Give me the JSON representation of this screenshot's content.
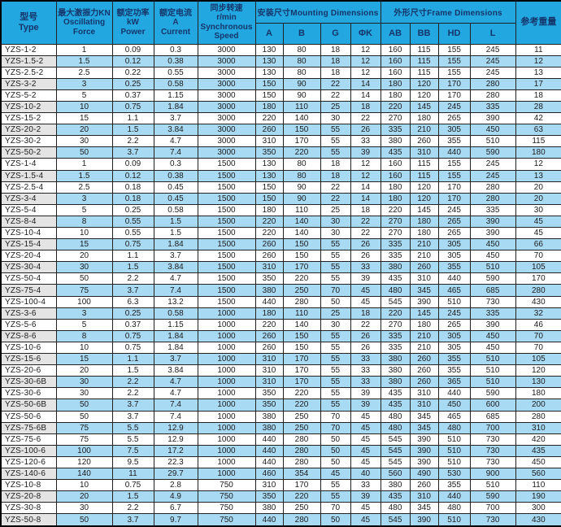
{
  "colors": {
    "header_bg": "#22a7e0",
    "header_text": "#15366b",
    "row_alt_bg": "#a9daf3",
    "type_alt_bg": "#e4e4e4",
    "border": "#222222",
    "data_text": "#1c1c1c"
  },
  "table": {
    "headers": {
      "type": "型号\nType",
      "force": "最大激振力KN\nOscillating\nForce",
      "power": "额定功率\nkW\nPower",
      "current": "额定电流\nA\nCurrent",
      "speed": "同步转速\nr/min\nSynchronous\nSpeed",
      "mounting_group": "安装尺寸Mounting Dimensions",
      "mounting_cols": [
        "A",
        "B",
        "G",
        "ΦK"
      ],
      "frame_group": "外形尺寸Frame Dimensions",
      "frame_cols": [
        "AB",
        "BB",
        "HD",
        "L"
      ],
      "weight": "参考重量"
    },
    "rows": [
      [
        "YZS-1-2",
        "1",
        "0.09",
        "0.3",
        "3000",
        "130",
        "80",
        "18",
        "12",
        "160",
        "115",
        "155",
        "245",
        "11"
      ],
      [
        "YZS-1.5-2",
        "1.5",
        "0.12",
        "0.38",
        "3000",
        "130",
        "80",
        "18",
        "12",
        "160",
        "115",
        "155",
        "245",
        "12"
      ],
      [
        "YZS-2.5-2",
        "2.5",
        "0.22",
        "0.55",
        "3000",
        "130",
        "80",
        "18",
        "12",
        "160",
        "115",
        "155",
        "245",
        "13"
      ],
      [
        "YZS-3-2",
        "3",
        "0.25",
        "0.58",
        "3000",
        "150",
        "90",
        "22",
        "14",
        "180",
        "120",
        "170",
        "280",
        "17"
      ],
      [
        "YZS-5-2",
        "5",
        "0.37",
        "1.15",
        "3000",
        "150",
        "90",
        "22",
        "14",
        "180",
        "120",
        "170",
        "280",
        "18"
      ],
      [
        "YZS-10-2",
        "10",
        "0.75",
        "1.84",
        "3000",
        "180",
        "110",
        "25",
        "18",
        "220",
        "145",
        "245",
        "335",
        "28"
      ],
      [
        "YZS-15-2",
        "15",
        "1.1",
        "3.7",
        "3000",
        "220",
        "140",
        "30",
        "22",
        "270",
        "180",
        "265",
        "390",
        "42"
      ],
      [
        "YZS-20-2",
        "20",
        "1.5",
        "3.84",
        "3000",
        "260",
        "150",
        "55",
        "26",
        "335",
        "210",
        "305",
        "450",
        "63"
      ],
      [
        "YZS-30-2",
        "30",
        "2.2",
        "4.7",
        "3000",
        "310",
        "170",
        "55",
        "33",
        "380",
        "260",
        "355",
        "510",
        "115"
      ],
      [
        "YZS-50-2",
        "50",
        "3.7",
        "7.4",
        "3000",
        "350",
        "220",
        "55",
        "39",
        "435",
        "310",
        "440",
        "590",
        "180"
      ],
      [
        "YZS-1-4",
        "1",
        "0.09",
        "0.3",
        "1500",
        "130",
        "80",
        "18",
        "12",
        "160",
        "115",
        "155",
        "245",
        "12"
      ],
      [
        "YZS-1.5-4",
        "1.5",
        "0.12",
        "0.38",
        "1500",
        "130",
        "80",
        "18",
        "12",
        "160",
        "115",
        "155",
        "245",
        "13"
      ],
      [
        "YZS-2.5-4",
        "2.5",
        "0.18",
        "0.45",
        "1500",
        "150",
        "90",
        "22",
        "14",
        "180",
        "120",
        "170",
        "280",
        "20"
      ],
      [
        "YZS-3-4",
        "3",
        "0.18",
        "0.45",
        "1500",
        "150",
        "90",
        "22",
        "14",
        "180",
        "120",
        "170",
        "280",
        "20"
      ],
      [
        "YZS-5-4",
        "5",
        "0.25",
        "0.58",
        "1500",
        "180",
        "110",
        "25",
        "18",
        "220",
        "145",
        "245",
        "335",
        "30"
      ],
      [
        "YZS-8-4",
        "8",
        "0.55",
        "1.5",
        "1500",
        "220",
        "140",
        "30",
        "22",
        "270",
        "180",
        "265",
        "390",
        "45"
      ],
      [
        "YZS-10-4",
        "10",
        "0.55",
        "1.5",
        "1500",
        "220",
        "140",
        "30",
        "22",
        "270",
        "180",
        "265",
        "390",
        "45"
      ],
      [
        "YZS-15-4",
        "15",
        "0.75",
        "1.84",
        "1500",
        "260",
        "150",
        "55",
        "26",
        "335",
        "210",
        "305",
        "450",
        "66"
      ],
      [
        "YZS-20-4",
        "20",
        "1.1",
        "3.7",
        "1500",
        "260",
        "150",
        "55",
        "26",
        "335",
        "210",
        "305",
        "450",
        "70"
      ],
      [
        "YZS-30-4",
        "30",
        "1.5",
        "3.84",
        "1500",
        "310",
        "170",
        "55",
        "33",
        "380",
        "260",
        "355",
        "510",
        "105"
      ],
      [
        "YZS-50-4",
        "50",
        "2.2",
        "4.7",
        "1500",
        "350",
        "220",
        "55",
        "39",
        "435",
        "310",
        "440",
        "590",
        "170"
      ],
      [
        "YZS-75-4",
        "75",
        "3.7",
        "7.4",
        "1500",
        "380",
        "250",
        "70",
        "45",
        "480",
        "345",
        "465",
        "685",
        "280"
      ],
      [
        "YZS-100-4",
        "100",
        "6.3",
        "13.2",
        "1500",
        "440",
        "280",
        "50",
        "45",
        "545",
        "390",
        "510",
        "730",
        "430"
      ],
      [
        "YZS-3-6",
        "3",
        "0.25",
        "0.58",
        "1000",
        "180",
        "110",
        "25",
        "18",
        "220",
        "145",
        "245",
        "335",
        "32"
      ],
      [
        "YZS-5-6",
        "5",
        "0.37",
        "1.15",
        "1000",
        "220",
        "140",
        "30",
        "22",
        "270",
        "180",
        "265",
        "390",
        "46"
      ],
      [
        "YZS-8-6",
        "8",
        "0.75",
        "1.84",
        "1000",
        "260",
        "150",
        "55",
        "26",
        "335",
        "210",
        "305",
        "450",
        "70"
      ],
      [
        "YZS-10-6",
        "10",
        "0.75",
        "1.84",
        "1000",
        "260",
        "150",
        "55",
        "26",
        "335",
        "210",
        "305",
        "450",
        "70"
      ],
      [
        "YZS-15-6",
        "15",
        "1.1",
        "3.7",
        "1000",
        "310",
        "170",
        "55",
        "33",
        "380",
        "260",
        "355",
        "510",
        "105"
      ],
      [
        "YZS-20-6",
        "20",
        "1.5",
        "3.84",
        "1000",
        "310",
        "170",
        "55",
        "33",
        "380",
        "260",
        "355",
        "510",
        "120"
      ],
      [
        "YZS-30-6B",
        "30",
        "2.2",
        "4.7",
        "1000",
        "310",
        "170",
        "55",
        "33",
        "380",
        "260",
        "365",
        "510",
        "130"
      ],
      [
        "YZS-30-6",
        "30",
        "2.2",
        "4.7",
        "1000",
        "350",
        "220",
        "55",
        "39",
        "435",
        "310",
        "440",
        "590",
        "180"
      ],
      [
        "YZS-50-6B",
        "50",
        "3.7",
        "7.4",
        "1000",
        "350",
        "220",
        "55",
        "39",
        "435",
        "310",
        "450",
        "600",
        "200"
      ],
      [
        "YZS-50-6",
        "50",
        "3.7",
        "7.4",
        "1000",
        "380",
        "250",
        "70",
        "45",
        "480",
        "345",
        "465",
        "685",
        "280"
      ],
      [
        "YZS-75-6B",
        "75",
        "5.5",
        "12.9",
        "1000",
        "380",
        "250",
        "70",
        "45",
        "480",
        "345",
        "480",
        "700",
        "310"
      ],
      [
        "YZS-75-6",
        "75",
        "5.5",
        "12.9",
        "1000",
        "440",
        "280",
        "50",
        "45",
        "545",
        "390",
        "510",
        "730",
        "420"
      ],
      [
        "YZS-100-6",
        "100",
        "7.5",
        "17.2",
        "1000",
        "440",
        "280",
        "50",
        "45",
        "545",
        "390",
        "510",
        "730",
        "435"
      ],
      [
        "YZS-120-6",
        "120",
        "9.5",
        "22.3",
        "1000",
        "440",
        "280",
        "50",
        "45",
        "545",
        "390",
        "510",
        "730",
        "450"
      ],
      [
        "YZS-140-6",
        "140",
        "11",
        "29.7",
        "1000",
        "460",
        "354",
        "45",
        "40",
        "560",
        "490",
        "530",
        "900",
        "560"
      ],
      [
        "YZS-10-8",
        "10",
        "0.75",
        "2.8",
        "750",
        "310",
        "170",
        "55",
        "33",
        "380",
        "260",
        "355",
        "510",
        "110"
      ],
      [
        "YZS-20-8",
        "20",
        "1.5",
        "4.9",
        "750",
        "350",
        "220",
        "55",
        "39",
        "435",
        "310",
        "440",
        "590",
        "190"
      ],
      [
        "YZS-30-8",
        "30",
        "2.2",
        "6.7",
        "750",
        "380",
        "250",
        "70",
        "45",
        "480",
        "345",
        "480",
        "700",
        "300"
      ],
      [
        "YZS-50-8",
        "50",
        "3.7",
        "9.7",
        "750",
        "440",
        "280",
        "50",
        "45",
        "545",
        "390",
        "510",
        "730",
        "430"
      ]
    ]
  }
}
